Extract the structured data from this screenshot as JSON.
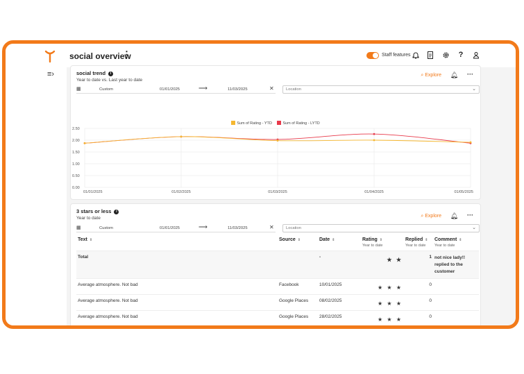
{
  "header": {
    "title": "social overview",
    "staff_features_label": "Staff features"
  },
  "icons": {
    "logo": "brand-logo-icon",
    "collapse": "sidebar-collapse-icon",
    "bell": "bell-icon",
    "doc": "document-icon",
    "gear": "gear-icon",
    "help": "help-icon",
    "user": "user-icon"
  },
  "colors": {
    "accent": "#f27a1a",
    "ytd": "#f5b731",
    "lytd": "#e8394a"
  },
  "social_trend": {
    "title": "social trend",
    "subtitle": "Year to date vs. Last year to date",
    "explore": "Explore",
    "date_preset": "Custom",
    "date_from": "01/01/2025",
    "date_to": "11/03/2025",
    "location_placeholder": "Location"
  },
  "chart_data": {
    "type": "line",
    "x": [
      "01/01/2025",
      "01/02/2025",
      "01/03/2025",
      "01/04/2025",
      "01/05/2025"
    ],
    "series": [
      {
        "name": "Sum of Rating - YTD",
        "values": [
          1.87,
          2.15,
          1.98,
          2.0,
          1.91
        ]
      },
      {
        "name": "Sum of Rating - LYTD",
        "values": [
          1.87,
          2.15,
          2.03,
          2.26,
          1.87
        ]
      }
    ],
    "ylim": [
      0,
      2.5
    ],
    "yticks": [
      "0.00",
      "0.50",
      "1.00",
      "1.50",
      "2.00",
      "2.50"
    ],
    "grid": true,
    "legend": "top-center"
  },
  "low_ratings": {
    "title": "3 stars or less",
    "subtitle": "Year to date",
    "explore": "Explore",
    "date_preset": "Custom",
    "date_from": "01/01/2025",
    "date_to": "11/03/2025",
    "location_placeholder": "Location",
    "columns": {
      "text": "Text",
      "source": "Source",
      "date": "Date",
      "rating": "Rating",
      "rating_sub": "Year to date",
      "replied": "Replied",
      "replied_sub": "Year to date",
      "comment": "Comment",
      "comment_sub": "Year to date"
    },
    "total": {
      "label": "Total",
      "date": "-",
      "rating": "★ ★",
      "replied": "1",
      "comment": "not nice lady!! replied to the customer"
    },
    "rows": [
      {
        "text": "Average atmosphere. Not bad",
        "source": "Facebook",
        "date": "10/01/2025",
        "rating": "★ ★ ★",
        "replied": "0",
        "comment": ""
      },
      {
        "text": "Average atmosphere. Not bad",
        "source": "Google Places",
        "date": "08/02/2025",
        "rating": "★ ★ ★",
        "replied": "0",
        "comment": ""
      },
      {
        "text": "Average atmosphere. Not bad",
        "source": "Google Places",
        "date": "28/02/2025",
        "rating": "★ ★ ★",
        "replied": "0",
        "comment": ""
      }
    ]
  }
}
